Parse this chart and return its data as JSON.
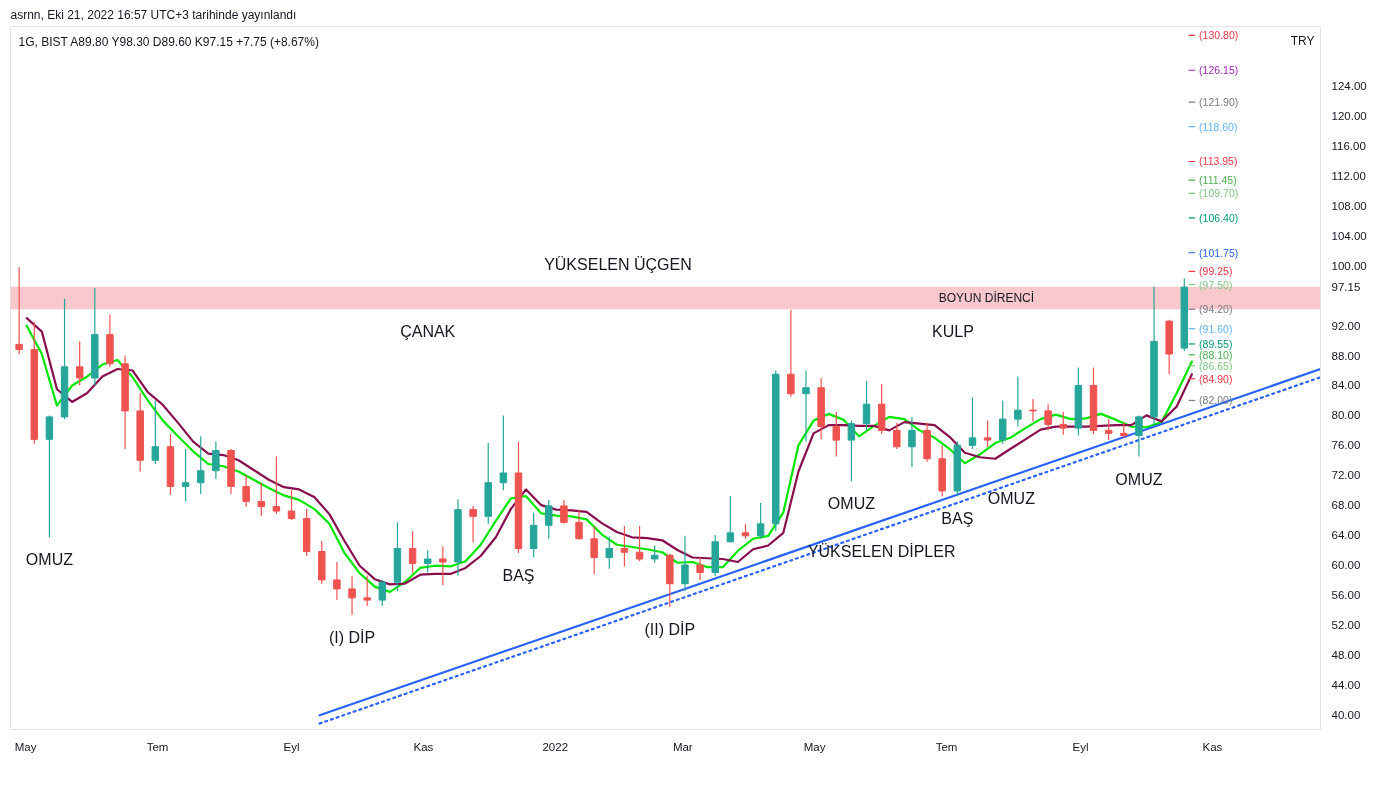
{
  "chart_data": {
    "type": "candlestick",
    "title": "1G, BIST  A89.80  Y98.30  D89.60  K97.15  +7.75 (+8.67%)",
    "ylabel": "TRY",
    "x": [
      "2021-04-28",
      "2021-05-05",
      "2021-05-12",
      "2021-05-19",
      "2021-05-26",
      "2021-06-02",
      "2021-06-09",
      "2021-06-16",
      "2021-06-23",
      "2021-06-30",
      "2021-07-07",
      "2021-07-14",
      "2021-07-21",
      "2021-07-28",
      "2021-08-04",
      "2021-08-11",
      "2021-08-18",
      "2021-08-25",
      "2021-09-01",
      "2021-09-08",
      "2021-09-15",
      "2021-09-22",
      "2021-09-29",
      "2021-10-06",
      "2021-10-13",
      "2021-10-20",
      "2021-10-27",
      "2021-11-03",
      "2021-11-10",
      "2021-11-17",
      "2021-11-24",
      "2021-12-01",
      "2021-12-08",
      "2021-12-15",
      "2021-12-22",
      "2021-12-29",
      "2022-01-05",
      "2022-01-12",
      "2022-01-19",
      "2022-01-26",
      "2022-02-02",
      "2022-02-09",
      "2022-02-16",
      "2022-02-23",
      "2022-03-02",
      "2022-03-09",
      "2022-03-16",
      "2022-03-23",
      "2022-03-30",
      "2022-04-06",
      "2022-04-13",
      "2022-04-20",
      "2022-04-27",
      "2022-05-04",
      "2022-05-11",
      "2022-05-18",
      "2022-05-25",
      "2022-06-01",
      "2022-06-08",
      "2022-06-15",
      "2022-06-22",
      "2022-06-29",
      "2022-07-06",
      "2022-07-13",
      "2022-07-20",
      "2022-07-27",
      "2022-08-03",
      "2022-08-10",
      "2022-08-17",
      "2022-08-24",
      "2022-08-31",
      "2022-09-07",
      "2022-09-14",
      "2022-09-21",
      "2022-09-28",
      "2022-10-05",
      "2022-10-12",
      "2022-10-19"
    ],
    "ohlc": [
      [
        89.5,
        99.8,
        88.2,
        88.8
      ],
      [
        88.8,
        92.5,
        76.2,
        76.8
      ],
      [
        76.8,
        80.0,
        63.7,
        79.8
      ],
      [
        79.8,
        95.6,
        79.5,
        86.5
      ],
      [
        86.5,
        89.9,
        84.0,
        85.0
      ],
      [
        85.0,
        97.0,
        84.0,
        90.8
      ],
      [
        90.8,
        93.5,
        86.5,
        86.9
      ],
      [
        86.9,
        88.0,
        75.5,
        80.6
      ],
      [
        80.6,
        83.0,
        72.5,
        74.0
      ],
      [
        74.0,
        82.0,
        73.5,
        75.8
      ],
      [
        75.8,
        77.5,
        69.4,
        70.5
      ],
      [
        70.5,
        75.5,
        68.5,
        71.0
      ],
      [
        71.0,
        77.2,
        69.5,
        72.6
      ],
      [
        72.6,
        76.5,
        71.5,
        75.3
      ],
      [
        75.3,
        75.5,
        69.5,
        70.5
      ],
      [
        70.5,
        72.0,
        67.8,
        68.5
      ],
      [
        68.5,
        71.0,
        66.5,
        67.8
      ],
      [
        67.8,
        74.5,
        66.8,
        67.2
      ],
      [
        67.2,
        70.0,
        66.0,
        66.2
      ],
      [
        66.2,
        67.5,
        61.2,
        61.8
      ],
      [
        61.8,
        63.2,
        57.5,
        58.0
      ],
      [
        58.0,
        60.4,
        55.3,
        56.8
      ],
      [
        56.8,
        58.5,
        53.3,
        55.6
      ],
      [
        55.6,
        58.6,
        54.5,
        55.3
      ],
      [
        55.3,
        58.0,
        54.5,
        57.7
      ],
      [
        57.7,
        65.7,
        56.5,
        62.2
      ],
      [
        62.2,
        64.5,
        59.0,
        60.2
      ],
      [
        60.2,
        62.0,
        59.0,
        60.8
      ],
      [
        60.8,
        62.5,
        57.3,
        60.4
      ],
      [
        60.4,
        68.8,
        58.6,
        67.4
      ],
      [
        67.4,
        67.9,
        63.0,
        66.5
      ],
      [
        66.5,
        76.3,
        65.5,
        71.0
      ],
      [
        71.0,
        80.0,
        70.0,
        72.3
      ],
      [
        72.3,
        76.5,
        61.6,
        62.2
      ],
      [
        62.2,
        67.0,
        61.0,
        65.3
      ],
      [
        65.3,
        68.7,
        63.5,
        67.9
      ],
      [
        67.9,
        68.7,
        65.5,
        65.7
      ],
      [
        65.7,
        67.4,
        63.4,
        63.5
      ],
      [
        63.5,
        65.2,
        58.8,
        61.0
      ],
      [
        61.0,
        63.8,
        59.5,
        62.2
      ],
      [
        62.2,
        65.2,
        59.8,
        61.7
      ],
      [
        61.7,
        65.2,
        60.5,
        60.8
      ],
      [
        60.8,
        62.6,
        60.3,
        61.3
      ],
      [
        61.3,
        61.5,
        54.4,
        57.5
      ],
      [
        57.5,
        63.9,
        56.5,
        60.0
      ],
      [
        60.0,
        61.0,
        58.0,
        59.0
      ],
      [
        59.0,
        64.0,
        58.5,
        63.1
      ],
      [
        63.1,
        69.2,
        63.0,
        64.3
      ],
      [
        64.3,
        65.5,
        63.5,
        63.9
      ],
      [
        63.9,
        68.3,
        63.5,
        65.5
      ],
      [
        65.5,
        86.0,
        64.5,
        85.5
      ],
      [
        85.5,
        94.1,
        82.5,
        82.9
      ],
      [
        82.9,
        86.0,
        76.5,
        83.7
      ],
      [
        83.7,
        85.0,
        76.8,
        78.5
      ],
      [
        78.5,
        80.5,
        74.5,
        76.7
      ],
      [
        76.7,
        79.3,
        71.2,
        78.9
      ],
      [
        78.9,
        84.6,
        78.0,
        81.5
      ],
      [
        81.5,
        84.2,
        77.5,
        78.0
      ],
      [
        78.0,
        79.0,
        75.5,
        75.8
      ],
      [
        75.8,
        79.8,
        73.1,
        78.0
      ],
      [
        78.0,
        79.0,
        73.8,
        74.2
      ],
      [
        74.2,
        76.0,
        69.2,
        69.9
      ],
      [
        69.9,
        76.5,
        69.2,
        76.0
      ],
      [
        76.0,
        82.4,
        75.5,
        77.0
      ],
      [
        77.0,
        79.3,
        75.8,
        76.7
      ],
      [
        76.7,
        82.0,
        76.2,
        79.5
      ],
      [
        79.5,
        85.2,
        78.5,
        80.7
      ],
      [
        80.7,
        82.2,
        79.2,
        80.6
      ],
      [
        80.6,
        81.5,
        78.0,
        78.8
      ],
      [
        78.8,
        80.5,
        77.4,
        78.3
      ],
      [
        78.3,
        86.4,
        77.3,
        84.0
      ],
      [
        84.0,
        86.4,
        77.5,
        78.0
      ],
      [
        78.0,
        79.5,
        76.7,
        77.6
      ],
      [
        77.6,
        79.0,
        77.0,
        77.3
      ],
      [
        77.3,
        80.0,
        74.5,
        79.8
      ],
      [
        79.8,
        97.2,
        78.5,
        89.9
      ],
      [
        92.6,
        92.8,
        85.5,
        88.2
      ],
      [
        89.0,
        98.3,
        88.6,
        97.15
      ]
    ],
    "colors": [
      "#ef5350",
      "#ef5350",
      "#26a69a",
      "#26a69a",
      "#ef5350",
      "#26a69a",
      "#ef5350",
      "#ef5350",
      "#ef5350",
      "#26a69a",
      "#ef5350",
      "#26a69a",
      "#26a69a",
      "#26a69a",
      "#ef5350",
      "#ef5350",
      "#ef5350",
      "#ef5350",
      "#ef5350",
      "#ef5350",
      "#ef5350",
      "#ef5350",
      "#ef5350",
      "#ef5350",
      "#26a69a",
      "#26a69a",
      "#ef5350",
      "#26a69a",
      "#ef5350",
      "#26a69a",
      "#ef5350",
      "#26a69a",
      "#26a69a",
      "#ef5350",
      "#26a69a",
      "#26a69a",
      "#ef5350",
      "#ef5350",
      "#ef5350",
      "#26a69a",
      "#ef5350",
      "#ef5350",
      "#26a69a",
      "#ef5350",
      "#26a69a",
      "#ef5350",
      "#26a69a",
      "#26a69a",
      "#ef5350",
      "#26a69a",
      "#26a69a",
      "#ef5350",
      "#26a69a",
      "#ef5350",
      "#ef5350",
      "#26a69a",
      "#26a69a",
      "#ef5350",
      "#ef5350",
      "#26a69a",
      "#ef5350",
      "#ef5350",
      "#26a69a",
      "#26a69a",
      "#ef5350",
      "#26a69a",
      "#26a69a",
      "#ef5350",
      "#ef5350",
      "#ef5350",
      "#26a69a",
      "#ef5350",
      "#ef5350",
      "#ef5350",
      "#26a69a",
      "#26a69a",
      "#ef5350",
      "#26a69a"
    ],
    "series": [
      {
        "type": "line",
        "color": "#00e600",
        "x": [
          "2021-05-01T12:00",
          "2021-05-08T12:00",
          "2021-05-15T12:00",
          "2021-05-22T12:00",
          "2021-05-29T12:00",
          "2021-06-05T12:00",
          "2021-06-12T12:00",
          "2021-06-19T12:00",
          "2021-06-26T12:00",
          "2021-07-03T12:00",
          "2021-07-10T12:00",
          "2021-07-17T12:00",
          "2021-07-24T12:00",
          "2021-07-31T12:00",
          "2021-08-07T12:00",
          "2021-08-14T12:00",
          "2021-08-21T12:00",
          "2021-08-28T12:00",
          "2021-09-04T12:00",
          "2021-09-11T12:00",
          "2021-09-18T12:00",
          "2021-09-25T12:00",
          "2021-10-02T12:00",
          "2021-10-09T12:00",
          "2021-10-16T12:00",
          "2021-10-23T12:00",
          "2021-10-30T12:00",
          "2021-11-06T12:00",
          "2021-11-13T12:00",
          "2021-11-20T12:00",
          "2021-11-27T12:00",
          "2021-12-04T12:00",
          "2021-12-11T12:00",
          "2021-12-18T12:00",
          "2021-12-25T12:00",
          "2022-01-01T12:00",
          "2022-01-08T12:00",
          "2022-01-15T12:00",
          "2022-01-22T12:00",
          "2022-01-29T12:00",
          "2022-02-05T12:00",
          "2022-02-12T12:00",
          "2022-02-19T12:00",
          "2022-02-26T12:00",
          "2022-03-05T12:00",
          "2022-03-12T12:00",
          "2022-03-19T12:00",
          "2022-03-26T12:00",
          "2022-04-02T12:00",
          "2022-04-09T12:00",
          "2022-04-16T12:00",
          "2022-04-23T12:00",
          "2022-04-30T12:00",
          "2022-05-07T12:00",
          "2022-05-14T12:00",
          "2022-05-21T12:00",
          "2022-05-28T12:00",
          "2022-06-04T12:00",
          "2022-06-11T12:00",
          "2022-06-18T12:00",
          "2022-06-25T12:00",
          "2022-07-02T12:00",
          "2022-07-09T12:00",
          "2022-07-16T12:00",
          "2022-07-23T12:00",
          "2022-07-30T12:00",
          "2022-08-06T12:00",
          "2022-08-13T12:00",
          "2022-08-20T12:00",
          "2022-08-27T12:00",
          "2022-09-03T12:00",
          "2022-09-10T12:00",
          "2022-09-17T12:00",
          "2022-09-24T12:00",
          "2022-10-01T12:00",
          "2022-10-08T12:00",
          "2022-10-15T12:00",
          "2022-10-22T12:00"
        ],
        "values": [
          92.0,
          88.2,
          81.3,
          84.0,
          85.2,
          86.8,
          87.4,
          85.1,
          82.0,
          79.3,
          77.2,
          75.2,
          73.5,
          73.2,
          72.5,
          71.4,
          70.3,
          69.3,
          68.7,
          67.5,
          65.5,
          61.6,
          58.9,
          57.1,
          56.4,
          57.7,
          59.6,
          59.9,
          59.8,
          60.5,
          62.7,
          65.9,
          68.9,
          69.2,
          66.9,
          66.6,
          66.5,
          66.1,
          64.1,
          62.7,
          62.4,
          62.1,
          61.7,
          60.3,
          60.4,
          59.7,
          59.7,
          61.9,
          63.5,
          63.9,
          67.0,
          76.0,
          79.3,
          80.2,
          79.4,
          77.2,
          78.6,
          79.8,
          79.5,
          78.0,
          77.0,
          75.5,
          73.6,
          74.8,
          76.3,
          77.0,
          78.3,
          79.5,
          80.1,
          79.5,
          79.6,
          80.2,
          79.4,
          78.5,
          78.4,
          79.1,
          83.0,
          87.2
        ]
      },
      {
        "type": "line",
        "color": "#880e4f",
        "x": [
          "2021-05-01T12:00",
          "2021-05-08T12:00",
          "2021-05-15T12:00",
          "2021-05-22T12:00",
          "2021-05-29T12:00",
          "2021-06-05T12:00",
          "2021-06-12T12:00",
          "2021-06-19T12:00",
          "2021-06-26T12:00",
          "2021-07-03T12:00",
          "2021-07-10T12:00",
          "2021-07-17T12:00",
          "2021-07-24T12:00",
          "2021-07-31T12:00",
          "2021-08-07T12:00",
          "2021-08-14T12:00",
          "2021-08-21T12:00",
          "2021-08-28T12:00",
          "2021-09-04T12:00",
          "2021-09-11T12:00",
          "2021-09-18T12:00",
          "2021-09-25T12:00",
          "2021-10-02T12:00",
          "2021-10-09T12:00",
          "2021-10-16T12:00",
          "2021-10-23T12:00",
          "2021-10-30T12:00",
          "2021-11-06T12:00",
          "2021-11-13T12:00",
          "2021-11-20T12:00",
          "2021-11-27T12:00",
          "2021-12-04T12:00",
          "2021-12-11T12:00",
          "2021-12-18T12:00",
          "2021-12-25T12:00",
          "2022-01-01T12:00",
          "2022-01-08T12:00",
          "2022-01-15T12:00",
          "2022-01-22T12:00",
          "2022-01-29T12:00",
          "2022-02-05T12:00",
          "2022-02-12T12:00",
          "2022-02-19T12:00",
          "2022-02-26T12:00",
          "2022-03-05T12:00",
          "2022-03-12T12:00",
          "2022-03-19T12:00",
          "2022-03-26T12:00",
          "2022-04-02T12:00",
          "2022-04-09T12:00",
          "2022-04-16T12:00",
          "2022-04-23T12:00",
          "2022-04-30T12:00",
          "2022-05-07T12:00",
          "2022-05-14T12:00",
          "2022-05-21T12:00",
          "2022-05-28T12:00",
          "2022-06-04T12:00",
          "2022-06-11T12:00",
          "2022-06-18T12:00",
          "2022-06-25T12:00",
          "2022-07-02T12:00",
          "2022-07-09T12:00",
          "2022-07-16T12:00",
          "2022-07-23T12:00",
          "2022-07-30T12:00",
          "2022-08-06T12:00",
          "2022-08-13T12:00",
          "2022-08-20T12:00",
          "2022-08-27T12:00",
          "2022-09-03T12:00",
          "2022-09-10T12:00",
          "2022-09-17T12:00",
          "2022-09-24T12:00",
          "2022-10-01T12:00",
          "2022-10-08T12:00",
          "2022-10-15T12:00",
          "2022-10-22T12:00"
        ],
        "values": [
          93.0,
          91.2,
          83.5,
          81.8,
          83.0,
          85.2,
          86.2,
          86.0,
          83.1,
          81.4,
          79.0,
          76.5,
          74.9,
          74.7,
          74.0,
          72.7,
          71.4,
          70.4,
          70.1,
          69.1,
          66.8,
          63.2,
          59.9,
          58.1,
          57.4,
          57.5,
          58.7,
          58.8,
          58.8,
          59.6,
          61.2,
          63.7,
          67.5,
          70.1,
          68.0,
          67.4,
          67.3,
          67.1,
          65.6,
          64.4,
          63.7,
          63.6,
          63.3,
          62.0,
          61.0,
          60.9,
          60.8,
          60.4,
          62.1,
          62.6,
          64.3,
          72.5,
          77.6,
          78.7,
          78.7,
          78.6,
          78.6,
          78.0,
          79.1,
          78.9,
          78.7,
          77.1,
          75.0,
          74.4,
          74.2,
          75.5,
          76.8,
          78.1,
          78.5,
          78.5,
          78.5,
          78.6,
          78.7,
          78.7,
          80.0,
          79.2,
          81.2,
          85.5
        ]
      },
      {
        "type": "line",
        "color": "#2962ff",
        "x": [
          "2021-09-14",
          "2022-12-21"
        ],
        "values": [
          39.9,
          86.2
        ]
      },
      {
        "type": "line",
        "color": "#2962ff",
        "line_style": "dotted",
        "x": [
          "2021-09-14",
          "2022-12-21"
        ],
        "values": [
          38.8,
          85.1
        ]
      }
    ],
    "xlim": [
      "2021-04-24",
      "2022-12-21"
    ],
    "xticks": [
      {
        "value": "2021-05-01",
        "label": "May"
      },
      {
        "value": "2021-07-01",
        "label": "Tem"
      },
      {
        "value": "2021-09-01",
        "label": "Eyl"
      },
      {
        "value": "2021-11-01",
        "label": "Kas"
      },
      {
        "value": "2022-01-01",
        "label": "2022"
      },
      {
        "value": "2022-03-01",
        "label": "Mar"
      },
      {
        "value": "2022-05-01",
        "label": "May"
      },
      {
        "value": "2022-07-01",
        "label": "Tem"
      },
      {
        "value": "2022-09-01",
        "label": "Eyl"
      },
      {
        "value": "2022-11-01",
        "label": "Kas"
      }
    ],
    "ylim": [
      38.0,
      132.0
    ],
    "yticks": [
      {
        "value": 40,
        "label": "40.00"
      },
      {
        "value": 44,
        "label": "44.00"
      },
      {
        "value": 48,
        "label": "48.00"
      },
      {
        "value": 52,
        "label": "52.00"
      },
      {
        "value": 56,
        "label": "56.00"
      },
      {
        "value": 60,
        "label": "60.00"
      },
      {
        "value": 64,
        "label": "64.00"
      },
      {
        "value": 68,
        "label": "68.00"
      },
      {
        "value": 72,
        "label": "72.00"
      },
      {
        "value": 76,
        "label": "76.00"
      },
      {
        "value": 80,
        "label": "80.00"
      },
      {
        "value": 84,
        "label": "84.00"
      },
      {
        "value": 88,
        "label": "88.00"
      },
      {
        "value": 92,
        "label": "92.00"
      },
      {
        "value": 97.15,
        "label": "97.15"
      },
      {
        "value": 100,
        "label": "100.00"
      },
      {
        "value": 104,
        "label": "104.00"
      },
      {
        "value": 108,
        "label": "108.00"
      },
      {
        "value": 112,
        "label": "112.00"
      },
      {
        "value": 116,
        "label": "116.00"
      },
      {
        "value": 120,
        "label": "120.00"
      },
      {
        "value": 124,
        "label": "124.00"
      }
    ],
    "bands": [
      {
        "axis": "y",
        "from": 94.2,
        "to": 97.2,
        "label": "BOYUN DİRENCİ",
        "color": "#f8c8cc"
      }
    ],
    "ref_lines": [
      {
        "axis": "y",
        "value": 130.8,
        "label": "(130.80)",
        "color": "#f23645"
      },
      {
        "axis": "y",
        "value": 126.15,
        "label": "(126.15)",
        "color": "#9c27b0"
      },
      {
        "axis": "y",
        "value": 121.9,
        "label": "(121.90)",
        "color": "#787b86"
      },
      {
        "axis": "y",
        "value": 118.6,
        "label": "(118.60)",
        "color": "#64b5f6"
      },
      {
        "axis": "y",
        "value": 113.95,
        "label": "(113.95)",
        "color": "#f23645"
      },
      {
        "axis": "y",
        "value": 111.45,
        "label": "(111.45)",
        "color": "#4caf50"
      },
      {
        "axis": "y",
        "value": 109.7,
        "label": "(109.70)",
        "color": "#81c784"
      },
      {
        "axis": "y",
        "value": 106.4,
        "label": "(106.40)",
        "color": "#089981"
      },
      {
        "axis": "y",
        "value": 101.75,
        "label": "(101.75)",
        "color": "#2962ff"
      },
      {
        "axis": "y",
        "value": 99.25,
        "label": "(99.25)",
        "color": "#f23645"
      },
      {
        "axis": "y",
        "value": 97.5,
        "label": "(97.50)",
        "color": "#81c784"
      },
      {
        "axis": "y",
        "value": 94.2,
        "label": "(94.20)",
        "color": "#787b86"
      },
      {
        "axis": "y",
        "value": 91.6,
        "label": "(91.60)",
        "color": "#64b5f6"
      },
      {
        "axis": "y",
        "value": 89.55,
        "label": "(89.55)",
        "color": "#089981"
      },
      {
        "axis": "y",
        "value": 88.1,
        "label": "(88.10)",
        "color": "#4caf50"
      },
      {
        "axis": "y",
        "value": 86.65,
        "label": "(86.65)",
        "color": "#81c784"
      },
      {
        "axis": "y",
        "value": 84.9,
        "label": "(84.90)",
        "color": "#f23645"
      },
      {
        "axis": "y",
        "value": 82.0,
        "label": "(82.00)",
        "color": "#787b86"
      }
    ],
    "grid": false,
    "annotations": [
      "asrnn, Eki 21, 2022 16:57 UTC+3 tarihinde yayınlandı",
      {
        "text": "YÜKSELEN ÜÇGEN",
        "x": "2022-01-30",
        "y": 97.2
      },
      {
        "text": "ÇANAK",
        "x": "2021-11-03",
        "y": 94.2
      },
      {
        "text": "KULP",
        "x": "2022-07-04",
        "y": 94.2
      },
      {
        "text": "OMUZ",
        "x": "2021-05-12",
        "y": 63.7
      },
      {
        "text": "OMUZ",
        "x": "2022-05-18",
        "y": 71.2
      },
      {
        "text": "BAŞ",
        "x": "2022-07-06",
        "y": 69.2
      },
      {
        "text": "OMUZ",
        "x": "2022-09-28",
        "y": 74.5
      },
      {
        "text": "OMUZ",
        "x": "2022-07-31",
        "y": 71.9
      },
      {
        "text": "BAŞ",
        "x": "2021-12-15",
        "y": 61.6
      },
      {
        "text": "(I) DİP",
        "x": "2021-09-29",
        "y": 53.3
      },
      {
        "text": "(II) DİP",
        "x": "2022-02-23",
        "y": 54.4
      },
      {
        "text": "YÜKSELEN DİPLER",
        "x": "2022-06-01",
        "y": 64.8
      }
    ]
  }
}
